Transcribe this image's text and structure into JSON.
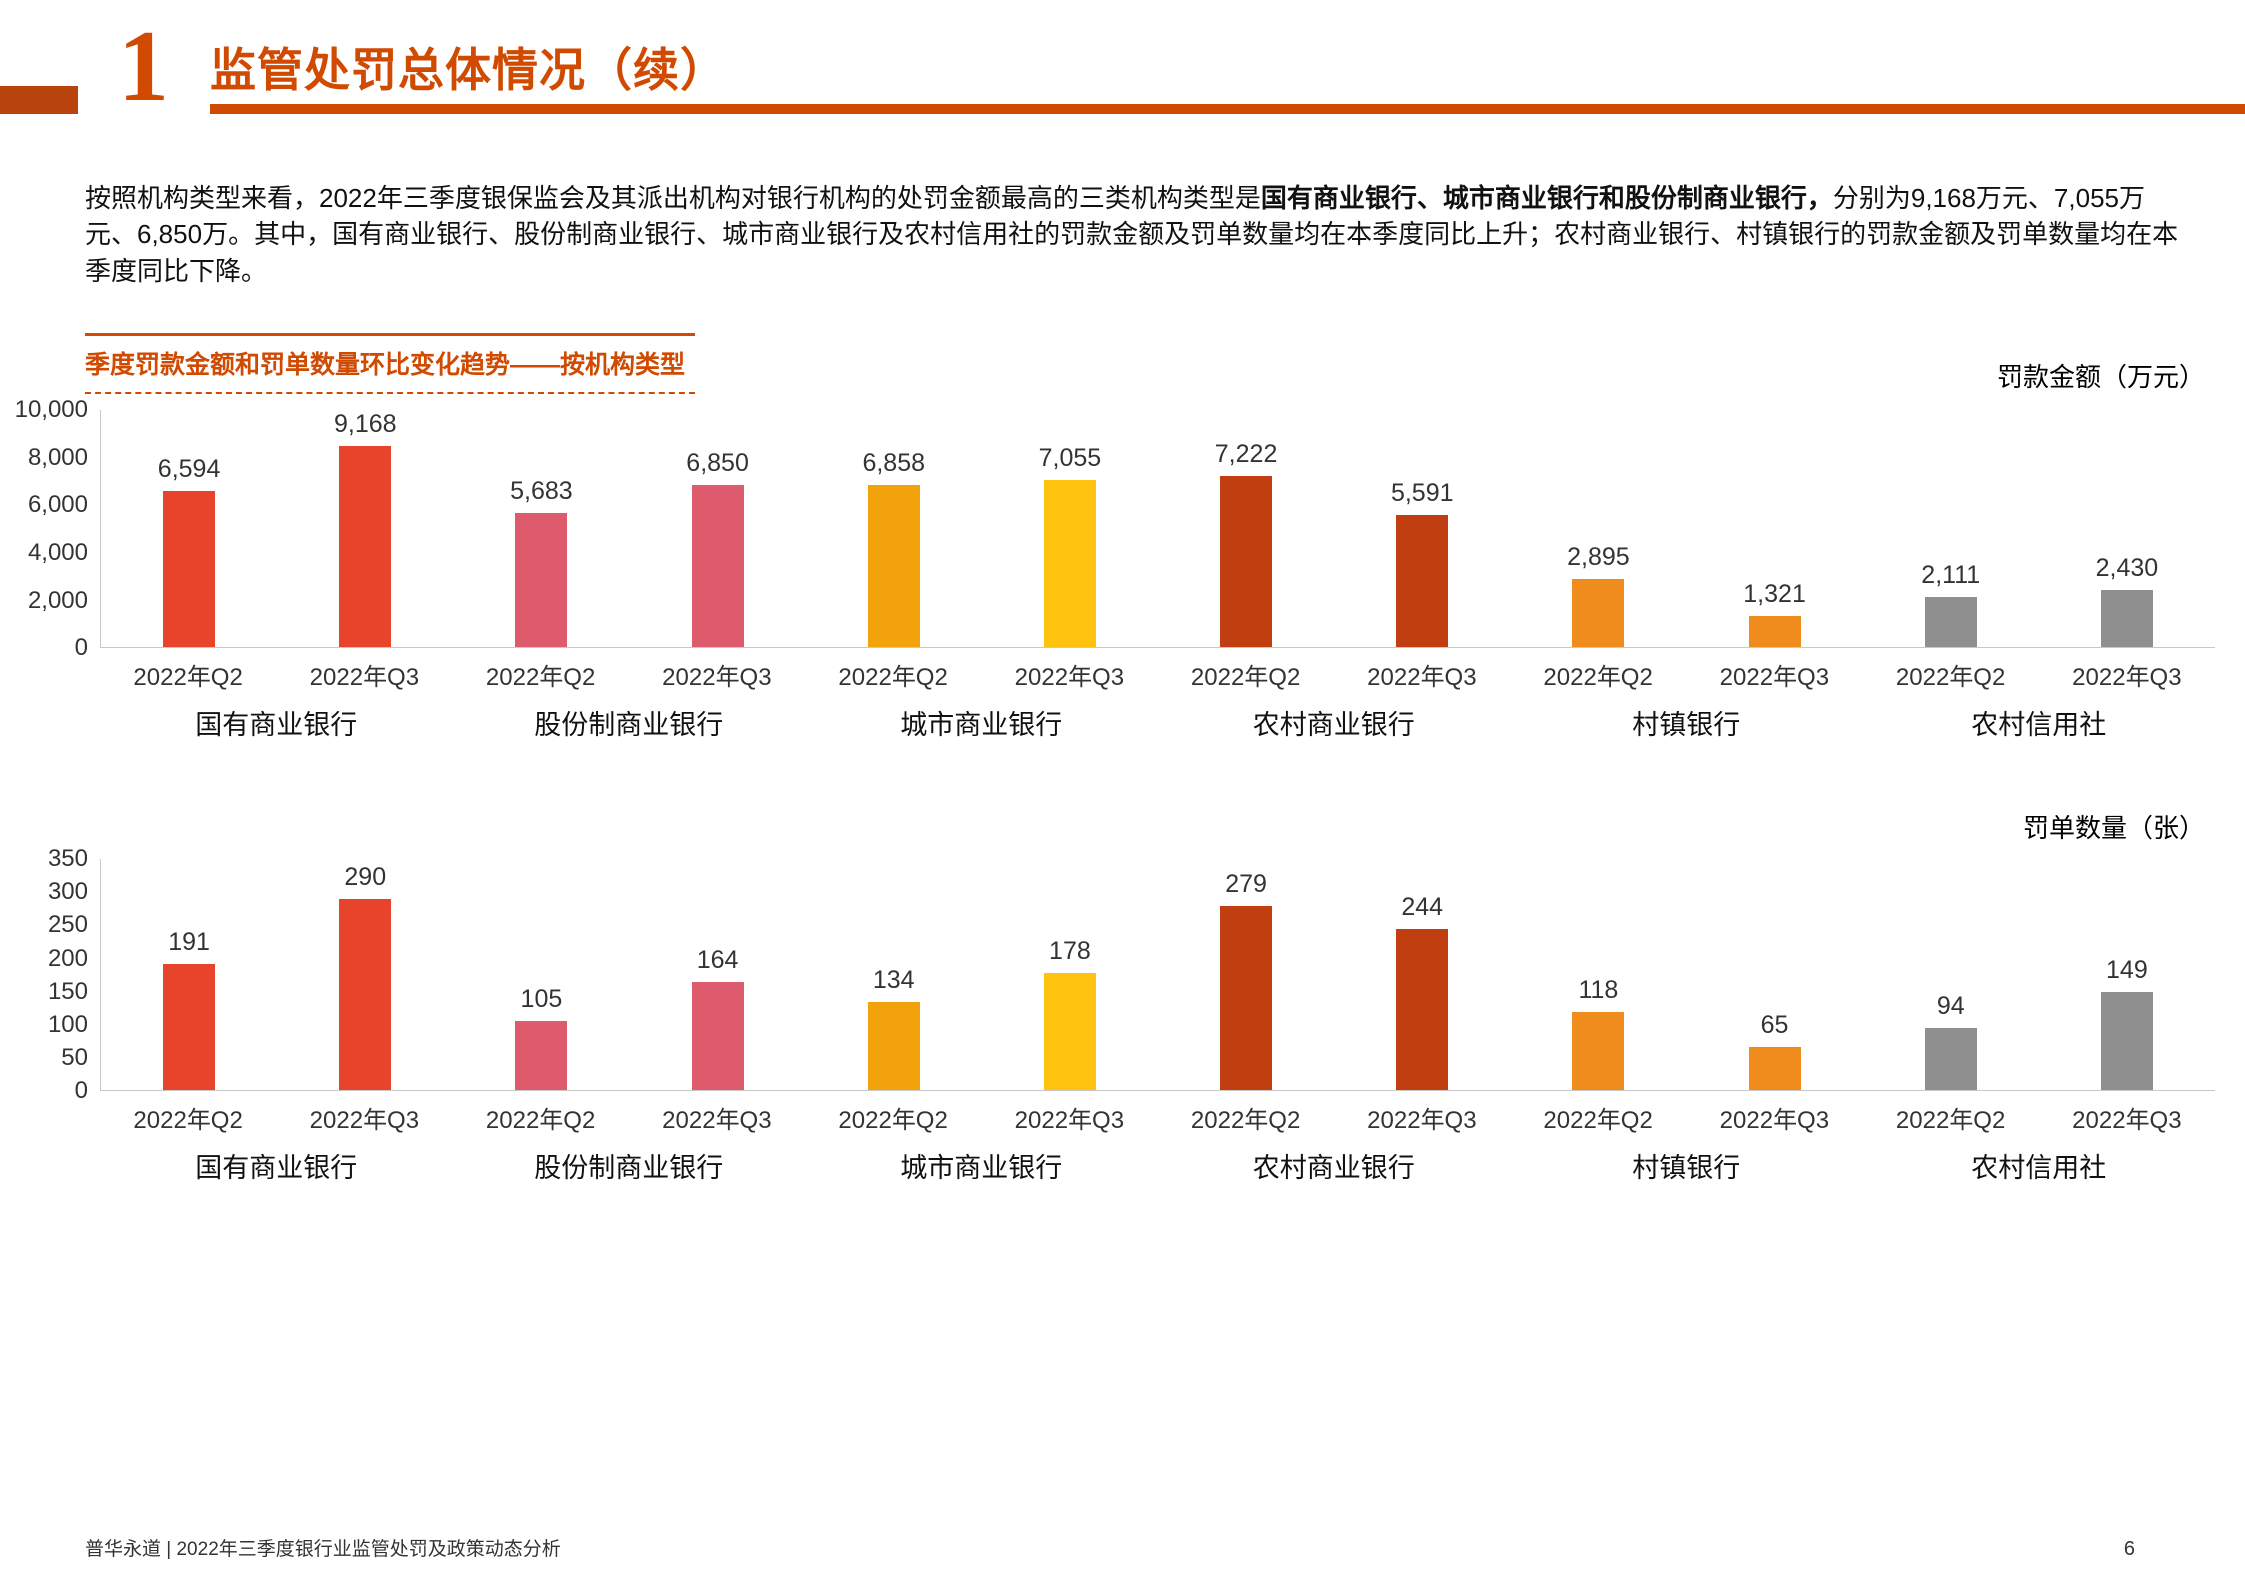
{
  "theme": {
    "accent": "#D04A02",
    "accent-dark": "#B8430C"
  },
  "header": {
    "section_number": "1",
    "title": "监管处罚总体情况（续）"
  },
  "paragraph": {
    "segments": [
      {
        "text": "按照机构类型来看，2022年三季度银保监会及其派出机构对银行机构的处罚金额最高的三类机构类型是",
        "bold": false
      },
      {
        "text": "国有商业银行、城市商业银行和股份制商业银行，",
        "bold": true
      },
      {
        "text": "分别为9,168万元、7,055万元、6,850万。其中，国有商业银行、股份制商业银行、城市商业银行及农村信用社的罚款金额及罚单数量均在本季度同比上升；农村商业银行、村镇银行的罚款金额及罚单数量均在本季度同比下降。",
        "bold": false
      }
    ]
  },
  "section_label": "季度罚款金额和罚单数量环比变化趋势——按机构类型",
  "chart_data": [
    {
      "type": "bar",
      "title": "罚款金额（万元）",
      "ylim": [
        0,
        10000
      ],
      "yticks": [
        0,
        2000,
        4000,
        6000,
        8000,
        10000
      ],
      "ytick_labels": [
        "0",
        "2,000",
        "4,000",
        "6,000",
        "8,000",
        "10,000"
      ],
      "categories": [
        "2022年Q2",
        "2022年Q3"
      ],
      "grid": false,
      "legend": "none",
      "groups": [
        {
          "label": "国有商业银行",
          "values": [
            6594,
            9168
          ],
          "value_labels": [
            "6,594",
            "9,168"
          ],
          "colors": [
            "#E8432B",
            "#E8432B"
          ]
        },
        {
          "label": "股份制商业银行",
          "values": [
            5683,
            6850
          ],
          "value_labels": [
            "5,683",
            "6,850"
          ],
          "colors": [
            "#DE5A6D",
            "#DE5A6D"
          ]
        },
        {
          "label": "城市商业银行",
          "values": [
            6858,
            7055
          ],
          "value_labels": [
            "6,858",
            "7,055"
          ],
          "colors": [
            "#F2A30B",
            "#FFC20E"
          ]
        },
        {
          "label": "农村商业银行",
          "values": [
            7222,
            5591
          ],
          "value_labels": [
            "7,222",
            "5,591"
          ],
          "colors": [
            "#C03E10",
            "#C03E10"
          ]
        },
        {
          "label": "村镇银行",
          "values": [
            2895,
            1321
          ],
          "value_labels": [
            "2,895",
            "1,321"
          ],
          "colors": [
            "#F08C1E",
            "#F08C1E"
          ]
        },
        {
          "label": "农村信用社",
          "values": [
            2111,
            2430
          ],
          "value_labels": [
            "2,111",
            "2,430"
          ],
          "colors": [
            "#8F8F8F",
            "#8F8F8F"
          ]
        }
      ]
    },
    {
      "type": "bar",
      "title": "罚单数量（张）",
      "ylim": [
        0,
        350
      ],
      "yticks": [
        0,
        50,
        100,
        150,
        200,
        250,
        300,
        350
      ],
      "ytick_labels": [
        "0",
        "50",
        "100",
        "150",
        "200",
        "250",
        "300",
        "350"
      ],
      "categories": [
        "2022年Q2",
        "2022年Q3"
      ],
      "grid": false,
      "legend": "none",
      "groups": [
        {
          "label": "国有商业银行",
          "values": [
            191,
            290
          ],
          "value_labels": [
            "191",
            "290"
          ],
          "colors": [
            "#E8432B",
            "#E8432B"
          ]
        },
        {
          "label": "股份制商业银行",
          "values": [
            105,
            164
          ],
          "value_labels": [
            "105",
            "164"
          ],
          "colors": [
            "#DE5A6D",
            "#DE5A6D"
          ]
        },
        {
          "label": "城市商业银行",
          "values": [
            134,
            178
          ],
          "value_labels": [
            "134",
            "178"
          ],
          "colors": [
            "#F2A30B",
            "#FFC20E"
          ]
        },
        {
          "label": "农村商业银行",
          "values": [
            279,
            244
          ],
          "value_labels": [
            "279",
            "244"
          ],
          "colors": [
            "#C03E10",
            "#C03E10"
          ]
        },
        {
          "label": "村镇银行",
          "values": [
            118,
            65
          ],
          "value_labels": [
            "118",
            "65"
          ],
          "colors": [
            "#F08C1E",
            "#F08C1E"
          ]
        },
        {
          "label": "农村信用社",
          "values": [
            94,
            149
          ],
          "value_labels": [
            "94",
            "149"
          ],
          "colors": [
            "#8F8F8F",
            "#8F8F8F"
          ]
        }
      ]
    }
  ],
  "footer": {
    "text": "普华永道 | 2022年三季度银行业监管处罚及政策动态分析",
    "page_number": "6"
  }
}
